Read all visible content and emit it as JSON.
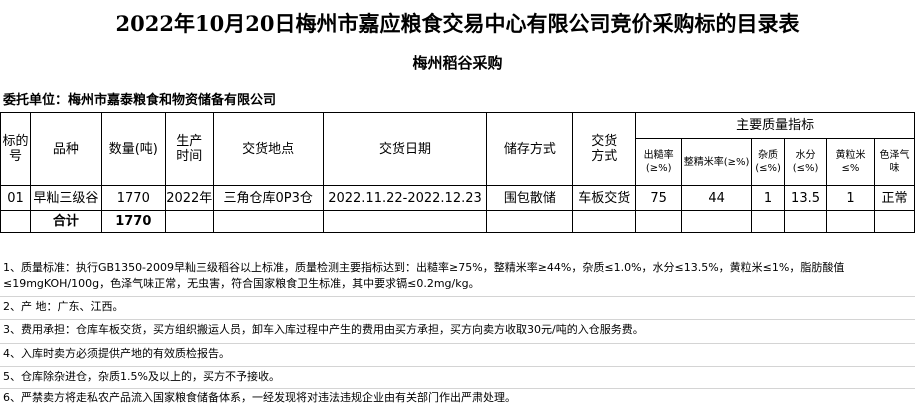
{
  "title": "2022年10月20日梅州市嘉应粮食交易中心有限公司竞价采购标的目录表",
  "subtitle": "梅州稻谷采购",
  "client": "委托单位：梅州市嘉泰粮食和物资储备有限公司",
  "headers": {
    "lot": "标的号",
    "variety": "品种",
    "qty": "数量(吨)",
    "prod": "生产时间",
    "place": "交货地点",
    "date": "交货日期",
    "storage": "储存方式",
    "delivery": "交货方式",
    "quality": "主要质量指标",
    "q": [
      "出糙率(≥%)",
      "整精米率(≥%)",
      "杂质(≤%)",
      "水分(≤%)",
      "黄粒米≤%",
      "色泽气味"
    ]
  },
  "rows": [
    {
      "lot": "01",
      "variety": "早籼三级谷",
      "qty": "1770",
      "prod": "2022年",
      "place": "三角仓库0P3仓",
      "date": "2022.11.22-2022.12.23",
      "storage": "围包散储",
      "delivery": "车板交货",
      "q": [
        "75",
        "44",
        "1",
        "13.5",
        "1",
        "正常"
      ]
    }
  ],
  "total": {
    "label": "合计",
    "qty": "1770"
  },
  "notes": [
    "1、质量标准：执行GB1350-2009早籼三级稻谷以上标准，质量检测主要指标达到：出糙率≥75%，整精米率≥44%，杂质≤1.0%，水分≤13.5%，黄粒米≤1%，脂肪酸值≤19mgKOH/100g，色泽气味正常，无虫害，符合国家粮食卫生标准，其中要求镉≤0.2mg/kg。",
    "2、产  地：广东、江西。",
    "3、费用承担：仓库车板交货，买方组织搬运人员，卸车入库过程中产生的费用由买方承担，买方向卖方收取30元/吨的入仓服务费。",
    "4、入库时卖方必须提供产地的有效质检报告。",
    "5、仓库除杂进仓，杂质1.5%及以上的，买方不予接收。",
    "6、严禁卖方将走私农产品流入国家粮食储备体系，一经发现将对违法违规企业由有关部门作出严肃处理。"
  ]
}
